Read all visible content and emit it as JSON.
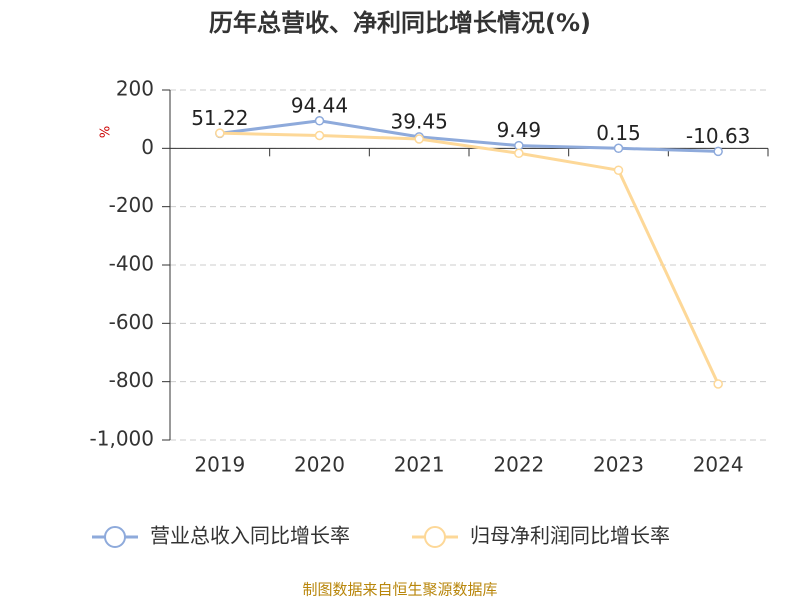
{
  "chart_data": {
    "type": "line",
    "title": "历年总营收、净利同比增长情况(%)",
    "y_unit": "%",
    "categories": [
      "2019",
      "2020",
      "2021",
      "2022",
      "2023",
      "2024"
    ],
    "series": [
      {
        "name": "营业总收入同比增长率",
        "color": "#8eaadb",
        "values": [
          51.22,
          94.44,
          39.45,
          9.49,
          0.15,
          -10.63
        ],
        "show_labels": true
      },
      {
        "name": "归母净利润同比增长率",
        "color": "#fdd898",
        "values": [
          52,
          44,
          32,
          -17,
          -75,
          -808
        ],
        "show_labels": false
      }
    ],
    "ylim": [
      -1000,
      200
    ],
    "yticks": [
      200,
      0,
      -200,
      -400,
      -600,
      -800,
      {
        "value": -1000,
        "label": "-1,000"
      }
    ],
    "grid": true,
    "legend": "bottom",
    "source": "制图数据来自恒生聚源数据库"
  }
}
